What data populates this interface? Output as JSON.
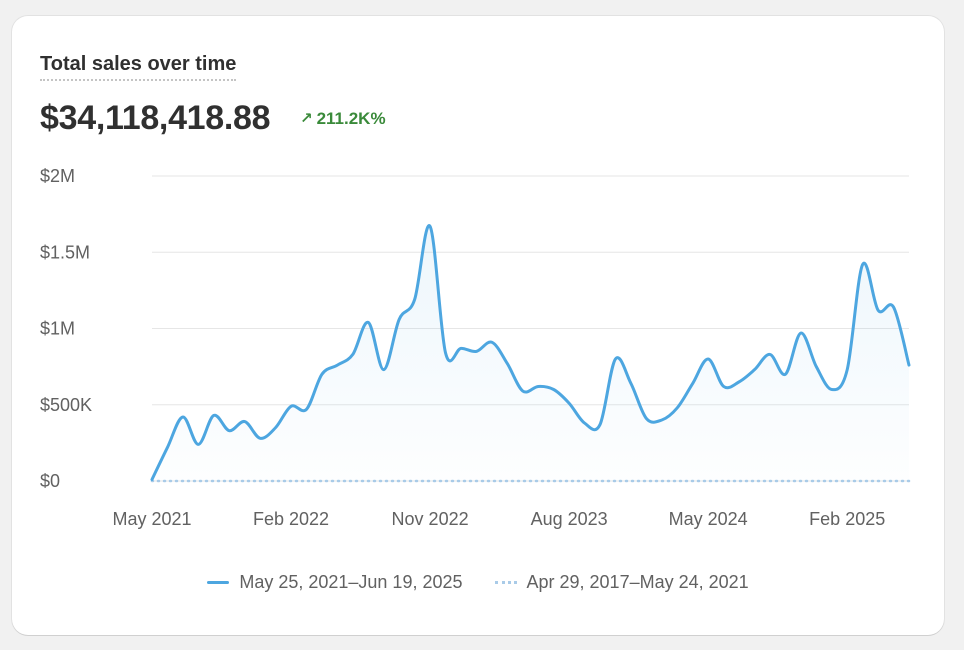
{
  "card": {
    "title": "Total sales over time",
    "total": "$34,118,418.88",
    "change": "211.2K%",
    "change_icon": "arrow-up-right-icon",
    "change_color": "#3a8a3a"
  },
  "legend": [
    {
      "label": "May 25, 2021–Jun 19, 2025",
      "style": "solid",
      "color": "#4da6e0"
    },
    {
      "label": "Apr 29, 2017–May 24, 2021",
      "style": "dotted",
      "color": "#a9cbe8"
    }
  ],
  "chart_data": {
    "type": "area",
    "title": "Total sales over time",
    "xlabel": "",
    "ylabel": "",
    "grid": true,
    "ylim": [
      0,
      2000000
    ],
    "y_ticks": [
      {
        "value": 0,
        "label": "$0"
      },
      {
        "value": 500000,
        "label": "$500K"
      },
      {
        "value": 1000000,
        "label": "$1M"
      },
      {
        "value": 1500000,
        "label": "$1.5M"
      },
      {
        "value": 2000000,
        "label": "$2M"
      }
    ],
    "x_ticks": [
      {
        "value": "2021-05",
        "label": "May 2021"
      },
      {
        "value": "2022-02",
        "label": "Feb 2022"
      },
      {
        "value": "2022-11",
        "label": "Nov 2022"
      },
      {
        "value": "2023-08",
        "label": "Aug 2023"
      },
      {
        "value": "2024-05",
        "label": "May 2024"
      },
      {
        "value": "2025-02",
        "label": "Feb 2025"
      }
    ],
    "series": [
      {
        "name": "May 25, 2021–Jun 19, 2025",
        "style": "solid",
        "color": "#4da6e0",
        "x": [
          "2021-05",
          "2021-06",
          "2021-07",
          "2021-08",
          "2021-09",
          "2021-10",
          "2021-11",
          "2021-12",
          "2022-01",
          "2022-02",
          "2022-03",
          "2022-04",
          "2022-05",
          "2022-06",
          "2022-07",
          "2022-08",
          "2022-09",
          "2022-10",
          "2022-11",
          "2022-12",
          "2023-01",
          "2023-02",
          "2023-03",
          "2023-04",
          "2023-05",
          "2023-06",
          "2023-07",
          "2023-08",
          "2023-09",
          "2023-10",
          "2023-11",
          "2023-12",
          "2024-01",
          "2024-02",
          "2024-03",
          "2024-04",
          "2024-05",
          "2024-06",
          "2024-07",
          "2024-08",
          "2024-09",
          "2024-10",
          "2024-11",
          "2024-12",
          "2025-01",
          "2025-02",
          "2025-03",
          "2025-04",
          "2025-05",
          "2025-06"
        ],
        "y": [
          10000,
          220000,
          420000,
          240000,
          430000,
          330000,
          390000,
          280000,
          350000,
          490000,
          470000,
          700000,
          760000,
          830000,
          1040000,
          730000,
          1060000,
          1190000,
          1670000,
          840000,
          870000,
          850000,
          910000,
          770000,
          590000,
          620000,
          600000,
          510000,
          380000,
          370000,
          800000,
          640000,
          410000,
          400000,
          480000,
          640000,
          800000,
          620000,
          650000,
          730000,
          830000,
          700000,
          970000,
          750000,
          600000,
          730000,
          1420000,
          1120000,
          1140000,
          760000
        ]
      },
      {
        "name": "Apr 29, 2017–May 24, 2021",
        "style": "dotted",
        "color": "#a9cbe8",
        "x": [
          "2021-05",
          "2021-06",
          "2021-07",
          "2021-08",
          "2021-09",
          "2021-10",
          "2021-11",
          "2021-12",
          "2022-01",
          "2022-02",
          "2022-03",
          "2022-04",
          "2022-05",
          "2022-06",
          "2022-07",
          "2022-08",
          "2022-09",
          "2022-10",
          "2022-11",
          "2022-12",
          "2023-01",
          "2023-02",
          "2023-03",
          "2023-04",
          "2023-05",
          "2023-06",
          "2023-07",
          "2023-08",
          "2023-09",
          "2023-10",
          "2023-11",
          "2023-12",
          "2024-01",
          "2024-02",
          "2024-03",
          "2024-04",
          "2024-05",
          "2024-06",
          "2024-07",
          "2024-08",
          "2024-09",
          "2024-10",
          "2024-11",
          "2024-12",
          "2025-01",
          "2025-02",
          "2025-03",
          "2025-04",
          "2025-05",
          "2025-06"
        ],
        "y": [
          0,
          0,
          0,
          0,
          0,
          0,
          0,
          0,
          0,
          0,
          0,
          0,
          0,
          0,
          0,
          0,
          0,
          0,
          0,
          0,
          0,
          0,
          0,
          0,
          0,
          0,
          0,
          0,
          0,
          0,
          0,
          0,
          0,
          0,
          0,
          0,
          0,
          0,
          0,
          0,
          0,
          0,
          0,
          0,
          0,
          0,
          0,
          0,
          0,
          0
        ]
      }
    ]
  }
}
